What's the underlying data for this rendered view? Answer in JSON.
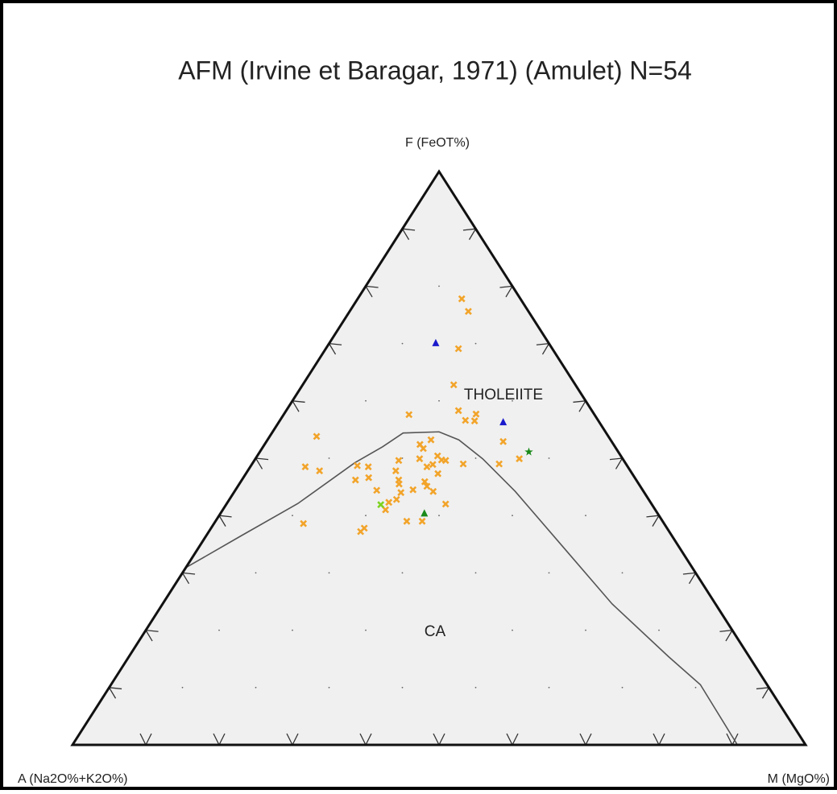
{
  "chart_data": {
    "type": "ternary",
    "title": "AFM (Irvine et Baragar, 1971) (Amulet) N=54",
    "apex_labels": {
      "top": "F (FeOT%)",
      "left": "A (Na2O%+K2O%)",
      "right": "M (MgO%)"
    },
    "annotations": [
      "THOLEIITE",
      "CA"
    ],
    "ticks": [
      10,
      20,
      30,
      40,
      50,
      60,
      70,
      80,
      90
    ],
    "grid": true,
    "boundary": {
      "color": "#555555",
      "a": [
        69.1,
        58.7,
        48.2,
        36.9,
        31.7,
        27.7,
        22.7,
        20.7,
        19.1,
        17.5,
        15.8,
        14.1,
        11.0,
        9.1,
        9.3
      ],
      "f": [
        30.9,
        36.5,
        42.1,
        49.2,
        52.0,
        54.4,
        54.6,
        53.2,
        49.9,
        44.2,
        34.4,
        24.6,
        15.4,
        10.5,
        0
      ],
      "m": [
        0,
        4.8,
        9.7,
        13.9,
        16.3,
        17.9,
        22.7,
        26.1,
        31.0,
        38.3,
        49.8,
        61.3,
        73.6,
        80.4,
        90.7
      ]
    },
    "series": [
      {
        "marker": "x",
        "color": "#f2a42a",
        "a": [
          8.0,
          8.2,
          12.8,
          16.6,
          25.3,
          18.2,
          18.1,
          16.1,
          16.9,
          39.8,
          26.4,
          24.5,
          26.3,
          14.8,
          44.0,
          42.4,
          36.8,
          35.4,
          30.7,
          27.7,
          25.0,
          24.3,
          26.4,
          24.8,
          22.2,
          17.3,
          14.1,
          32.0,
          38.3,
          36.3,
          32.4,
          27.4,
          26.5,
          36.3,
          32.7,
          31.3,
          29.1,
          33.2,
          35.7,
          34.4,
          36.8,
          28.7,
          28.1,
          34.9,
          32.8,
          41.3,
          42.1,
          49.2,
          29.0
        ],
        "f": [
          77.8,
          75.6,
          69.1,
          62.8,
          57.6,
          58.3,
          56.6,
          57.7,
          56.5,
          53.8,
          52.4,
          53.2,
          51.7,
          52.9,
          48.5,
          47.8,
          48.7,
          48.5,
          49.6,
          49.9,
          50.4,
          49.6,
          48.9,
          49.7,
          49.0,
          49.0,
          49.9,
          47.8,
          46.2,
          46.6,
          46.2,
          48.5,
          47.3,
          44.4,
          45.5,
          44.5,
          45.1,
          44.0,
          42.3,
          42.8,
          41.0,
          44.2,
          42.0,
          39.0,
          39.0,
          37.8,
          37.2,
          38.6,
          45.9
        ],
        "m": [
          14.2,
          16.2,
          18.1,
          20.6,
          17.1,
          23.5,
          25.3,
          26.2,
          26.6,
          6.4,
          21.2,
          22.3,
          22.0,
          32.3,
          7.5,
          9.8,
          14.5,
          16.1,
          19.7,
          22.4,
          24.6,
          26.1,
          24.7,
          25.5,
          28.8,
          33.7,
          36.0,
          20.2,
          15.5,
          17.1,
          21.4,
          24.1,
          26.2,
          19.3,
          21.8,
          24.2,
          25.8,
          22.8,
          22.0,
          22.8,
          22.2,
          27.1,
          29.9,
          26.1,
          28.2,
          20.9,
          20.7,
          12.2,
          25.1
        ]
      },
      {
        "marker": "x",
        "color": "#7ed321",
        "a": [
          37.0
        ],
        "f": [
          41.9
        ],
        "m": [
          21.1
        ]
      },
      {
        "marker": "triangle",
        "color": "#1a1acc",
        "a": [
          15.4,
          13.1
        ],
        "f": [
          70.1,
          56.3
        ],
        "m": [
          14.5,
          30.6
        ]
      },
      {
        "marker": "triangle",
        "color": "#1a8a1a",
        "a": [
          31.8
        ],
        "f": [
          40.4
        ],
        "m": [
          27.8
        ]
      },
      {
        "marker": "star",
        "color": "#1a8a1a",
        "a": [
          12.2
        ],
        "f": [
          51.1
        ],
        "m": [
          36.7
        ]
      }
    ]
  }
}
